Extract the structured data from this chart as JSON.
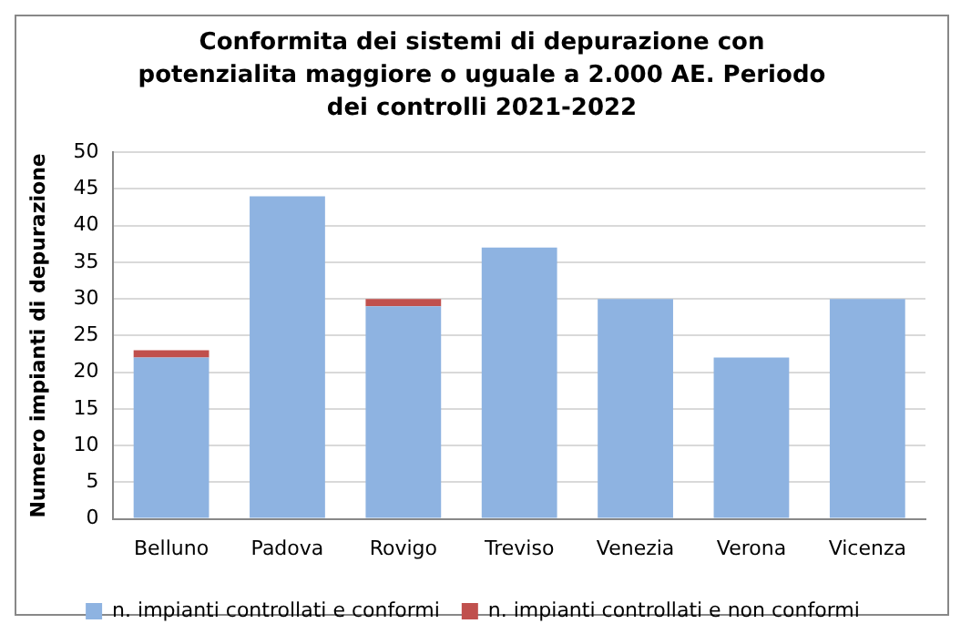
{
  "chart_data": {
    "type": "bar",
    "title": "Conformita dei sistemi di depurazione con potenzialita maggiore o uguale a 2.000 AE. Periodo dei controlli  2021-2022",
    "ylabel": "Numero impianti di depurazione",
    "categories": [
      "Belluno",
      "Padova",
      "Rovigo",
      "Treviso",
      "Venezia",
      "Verona",
      "Vicenza"
    ],
    "stacked": true,
    "series": [
      {
        "name": "n. impianti controllati e conformi",
        "color": "#8eb3e1",
        "values": [
          22,
          44,
          29,
          37,
          30,
          22,
          30
        ]
      },
      {
        "name": "n. impianti controllati e non conformi",
        "color": "#c0504d",
        "values": [
          1,
          0,
          1,
          0,
          0,
          0,
          0
        ]
      }
    ],
    "ylim": [
      0,
      50
    ],
    "yticks": [
      0,
      5,
      10,
      15,
      20,
      25,
      30,
      35,
      40,
      45,
      50
    ],
    "grid": "y",
    "legend": "bottom"
  }
}
